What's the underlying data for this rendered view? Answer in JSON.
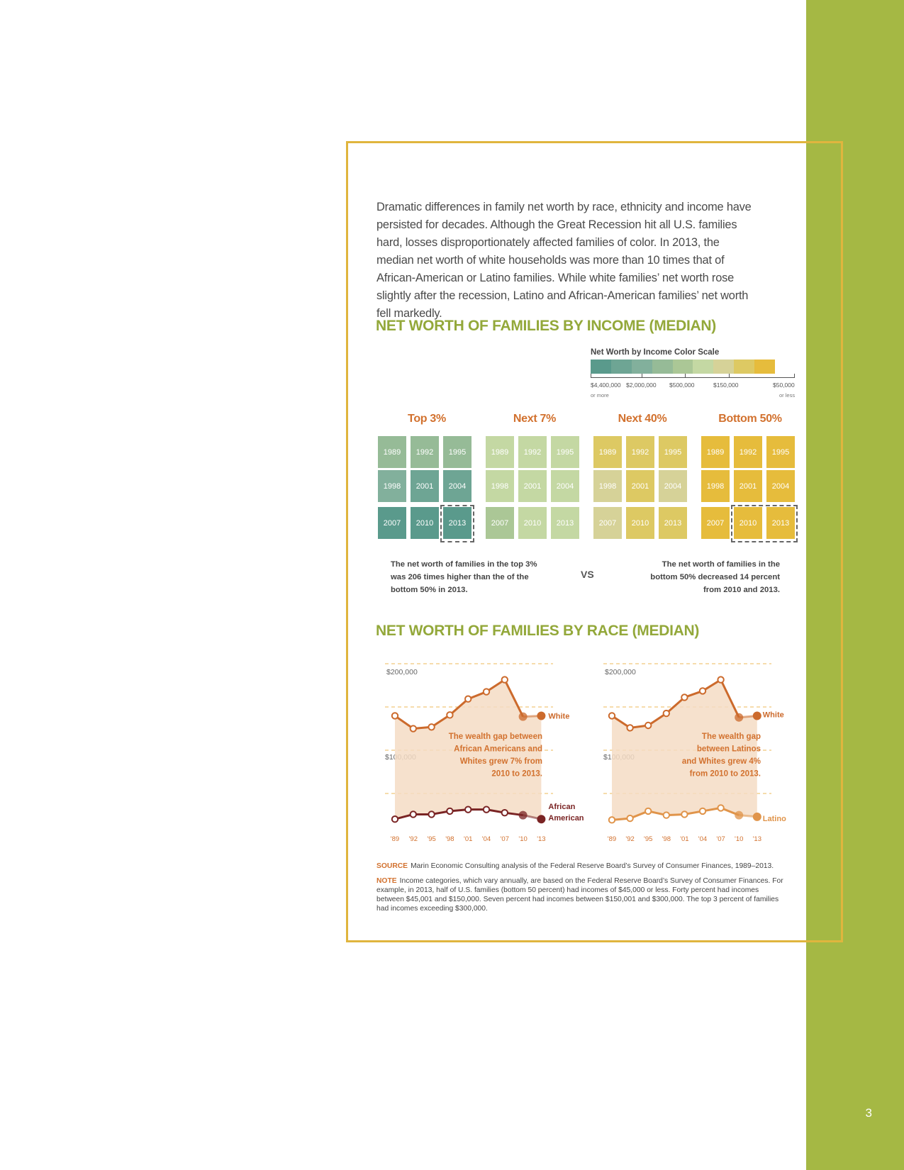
{
  "page_number": "3",
  "intro": "Dramatic differences in family net worth by race, ethnicity and income have persisted for decades. Although the Great Recession hit all U.S. families hard, losses disproportionately affected families of color. In 2013, the median net worth of white households was more than 10 times that of African-American or Latino families. While white families’ net worth rose slightly after the recession, Latino and African-American families’ net worth fell markedly.",
  "income_section": {
    "title": "NET WORTH OF FAMILIES BY INCOME (MEDIAN)",
    "scale": {
      "title": "Net Worth by Income Color Scale",
      "colors": [
        "#5a9a8c",
        "#6ea594",
        "#82b09c",
        "#96bb97",
        "#abc796",
        "#c4d8a3",
        "#d6d298",
        "#ddc963",
        "#e6bc3c"
      ],
      "labels": [
        "$4,400,000",
        "$2,000,000",
        "$500,000",
        "$150,000",
        "$50,000"
      ],
      "sublabels": [
        "or more",
        "or less"
      ]
    },
    "groups": [
      {
        "name": "Top 3%",
        "years": [
          "1989",
          "1992",
          "1995",
          "1998",
          "2001",
          "2004",
          "2007",
          "2010",
          "2013"
        ],
        "colors": [
          "#96bb97",
          "#96bb97",
          "#96bb97",
          "#82b09c",
          "#6ea594",
          "#6ea594",
          "#5a9a8c",
          "#5a9a8c",
          "#5a9a8c"
        ]
      },
      {
        "name": "Next 7%",
        "years": [
          "1989",
          "1992",
          "1995",
          "1998",
          "2001",
          "2004",
          "2007",
          "2010",
          "2013"
        ],
        "colors": [
          "#c4d8a3",
          "#c4d8a3",
          "#c4d8a3",
          "#c4d8a3",
          "#c4d8a3",
          "#c4d8a3",
          "#abc796",
          "#c4d8a3",
          "#c4d8a3"
        ]
      },
      {
        "name": "Next 40%",
        "years": [
          "1989",
          "1992",
          "1995",
          "1998",
          "2001",
          "2004",
          "2007",
          "2010",
          "2013"
        ],
        "colors": [
          "#ddc963",
          "#ddc963",
          "#ddc963",
          "#d6d298",
          "#ddc963",
          "#d6d298",
          "#d6d298",
          "#ddc963",
          "#ddc963"
        ]
      },
      {
        "name": "Bottom 50%",
        "years": [
          "1989",
          "1992",
          "1995",
          "1998",
          "2001",
          "2004",
          "2007",
          "2010",
          "2013"
        ],
        "colors": [
          "#e6bc3c",
          "#e6bc3c",
          "#e6bc3c",
          "#e6bc3c",
          "#e6bc3c",
          "#e6bc3c",
          "#e6bc3c",
          "#e6bc3c",
          "#e6bc3c"
        ]
      }
    ],
    "caption_left": "The net worth of families in the top 3% was 206 times higher than the of the bottom 50% in 2013.",
    "vs": "VS",
    "caption_right": "The net worth of families in the bottom 50% decreased 14 percent from 2010 and 2013."
  },
  "race_section": {
    "title": "NET WORTH OF FAMILIES BY RACE (MEDIAN)"
  },
  "chart_data": [
    {
      "type": "line",
      "x": [
        "'89",
        "'92",
        "'95",
        "'98",
        "'01",
        "'04",
        "'07",
        "'10",
        "'13"
      ],
      "y_tick_labels": [
        "$200,000",
        "$100,000"
      ],
      "ylim": [
        0,
        200000
      ],
      "series": [
        {
          "name": "White",
          "values": [
            135000,
            119000,
            121000,
            136000,
            156000,
            165000,
            180000,
            134000,
            135000
          ]
        },
        {
          "name": "African American",
          "values": [
            6000,
            12000,
            12000,
            16000,
            18000,
            18000,
            14000,
            11000,
            6000
          ]
        }
      ],
      "annotation": "The wealth gap between African Americans and Whites grew 7% from 2010 to 2013.",
      "colors": {
        "White": "#cc6a2c",
        "African American": "#7a2424",
        "gap": "#f5dcc4"
      }
    },
    {
      "type": "line",
      "x": [
        "'89",
        "'92",
        "'95",
        "'98",
        "'01",
        "'04",
        "'07",
        "'10",
        "'13"
      ],
      "y_tick_labels": [
        "$200,000",
        "$100,000"
      ],
      "ylim": [
        0,
        200000
      ],
      "series": [
        {
          "name": "White",
          "values": [
            135000,
            120000,
            123000,
            138000,
            158000,
            166000,
            180000,
            133000,
            135000
          ]
        },
        {
          "name": "Latino",
          "values": [
            5000,
            7000,
            16000,
            11000,
            12000,
            16000,
            20000,
            11000,
            9000
          ]
        }
      ],
      "annotation": "The wealth gap between Latinos and Whites grew 4% from 2010 to 2013.",
      "colors": {
        "White": "#cc6a2c",
        "Latino": "#e0944a",
        "gap": "#f5dcc4"
      }
    }
  ],
  "source": {
    "label": "SOURCE",
    "text": "Marin Economic Consulting analysis of the Federal Reserve Board’s Survey of Consumer Finances, 1989–2013."
  },
  "note": {
    "label": "NOTE",
    "text": "Income categories, which vary annually, are based on the Federal Reserve Board’s Survey of Consumer Finances. For example, in 2013, half of U.S. families (bottom 50 percent) had incomes of $45,000 or less. Forty percent had incomes between $45,001 and $150,000. Seven percent had incomes between $150,001 and $300,000. The top 3 percent of families had incomes exceeding $300,000."
  }
}
